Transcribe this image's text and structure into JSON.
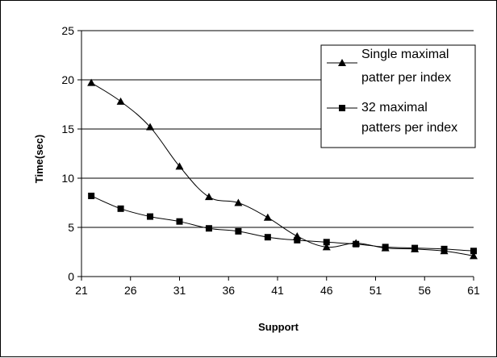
{
  "chart_data": {
    "type": "line",
    "xlabel": "Support",
    "ylabel": "Time(sec)",
    "xlim": [
      21,
      61
    ],
    "ylim": [
      0,
      25
    ],
    "x_ticks": [
      "21",
      "26",
      "31",
      "36",
      "41",
      "46",
      "51",
      "56",
      "61"
    ],
    "y_ticks": [
      "0",
      "5",
      "10",
      "15",
      "20",
      "25"
    ],
    "grid": "horizontal",
    "legend_position": "top-right",
    "series": [
      {
        "name": "Single maximal patter per index",
        "marker": "triangle",
        "x": [
          22,
          25,
          28,
          31,
          34,
          37,
          40,
          43,
          46,
          49,
          52,
          55,
          58,
          61
        ],
        "y": [
          19.7,
          17.8,
          15.2,
          11.2,
          8.1,
          7.5,
          6.0,
          4.1,
          3.0,
          3.4,
          2.9,
          2.8,
          2.6,
          2.1
        ]
      },
      {
        "name": "32 maximal patters per index",
        "marker": "square",
        "x": [
          22,
          25,
          28,
          31,
          34,
          37,
          40,
          43,
          46,
          49,
          52,
          55,
          58,
          61
        ],
        "y": [
          8.2,
          6.9,
          6.1,
          5.6,
          4.9,
          4.6,
          4.0,
          3.7,
          3.5,
          3.3,
          3.0,
          2.9,
          2.8,
          2.6
        ]
      }
    ]
  }
}
